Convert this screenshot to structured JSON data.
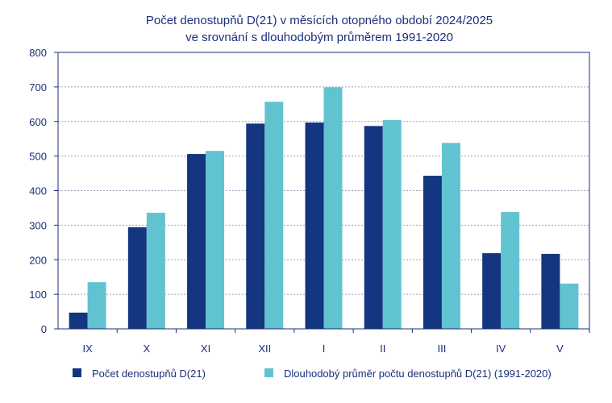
{
  "chart_data": {
    "type": "bar",
    "title_line1": "Počet denostupňů D(21) v měsících otopného období 2024/2025",
    "title_line2": "ve srovnání s dlouhodobým průměrem 1991-2020",
    "categories": [
      "IX",
      "X",
      "XI",
      "XII",
      "I",
      "II",
      "III",
      "IV",
      "V"
    ],
    "series": [
      {
        "name": "Počet denostupňů D(21)",
        "color": "#14357f",
        "values": [
          47,
          294,
          506,
          594,
          597,
          587,
          443,
          219,
          217
        ]
      },
      {
        "name": "Dlouhodobý průměr počtu denostupňů D(21) (1991-2020)",
        "color": "#62c3d0",
        "values": [
          135,
          336,
          515,
          657,
          699,
          604,
          538,
          338,
          131
        ]
      }
    ],
    "ylim": [
      0,
      800
    ],
    "yticks": [
      "0",
      "100",
      "200",
      "300",
      "400",
      "500",
      "600",
      "700",
      "800"
    ],
    "grid": true,
    "legend_position": "bottom",
    "title_color": "#1a2f7a"
  }
}
